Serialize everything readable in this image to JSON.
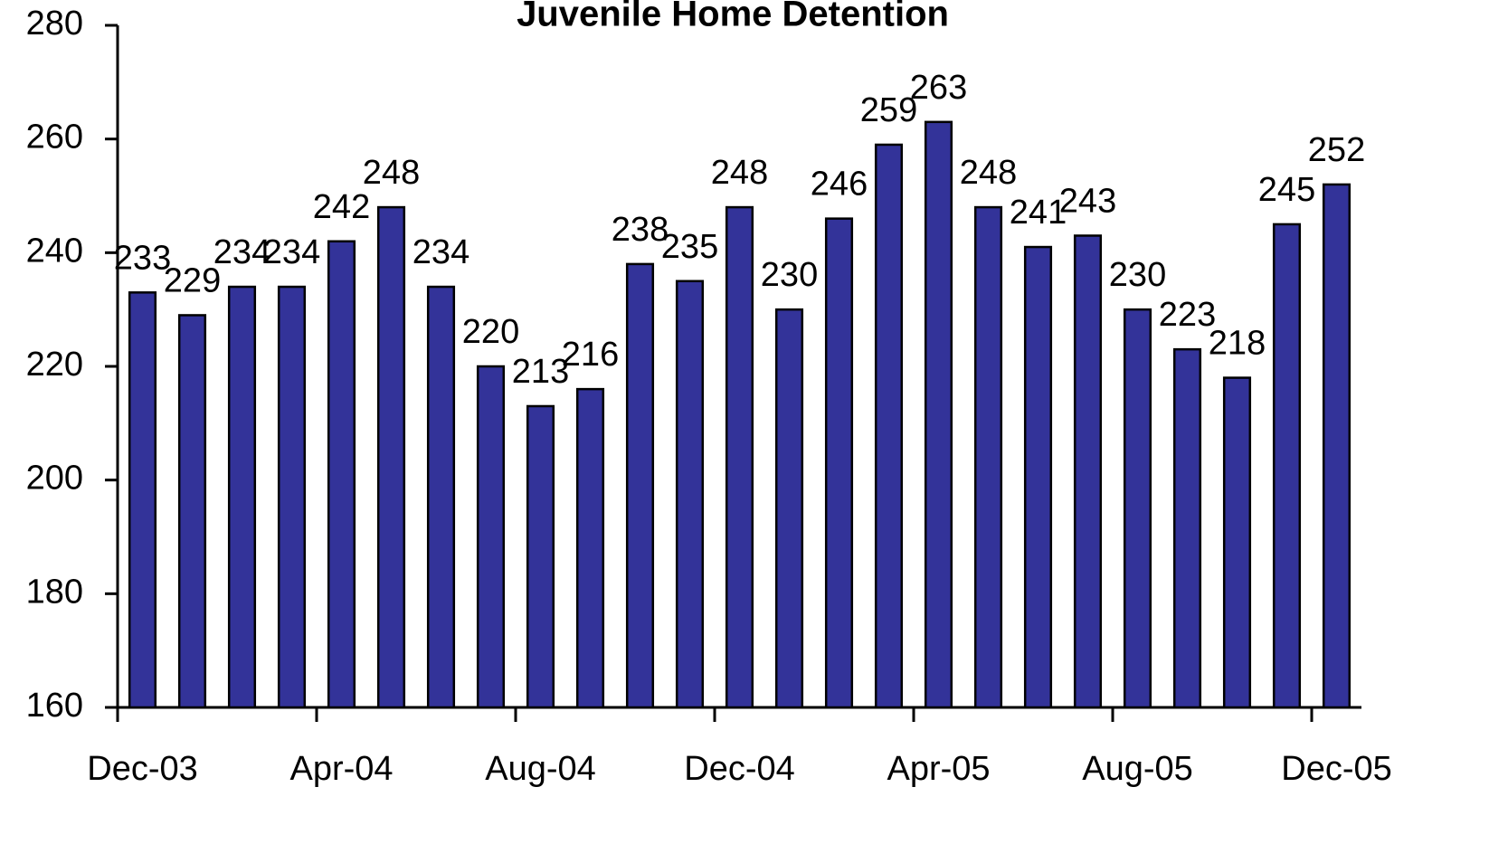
{
  "chart_data": {
    "type": "bar",
    "title": "Juvenile Home Detention",
    "categories": [
      "Dec-03",
      null,
      null,
      null,
      "Apr-04",
      null,
      null,
      null,
      "Aug-04",
      null,
      null,
      null,
      "Dec-04",
      null,
      null,
      null,
      "Apr-05",
      null,
      null,
      null,
      "Aug-05",
      null,
      null,
      null,
      "Dec-05"
    ],
    "values": [
      233,
      229,
      234,
      234,
      242,
      248,
      234,
      220,
      213,
      216,
      238,
      235,
      248,
      230,
      246,
      259,
      263,
      248,
      241,
      243,
      230,
      223,
      218,
      245,
      252
    ],
    "color": "#333399",
    "ylim": [
      160,
      280
    ],
    "yticks": [
      160,
      180,
      200,
      220,
      240,
      260,
      280
    ],
    "grid": false
  }
}
